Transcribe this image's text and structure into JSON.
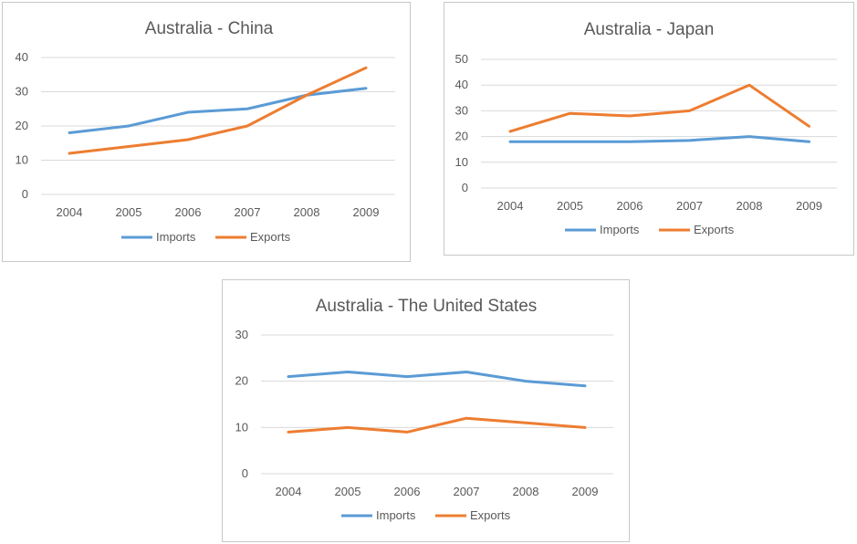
{
  "colors": {
    "imports": "#5b9bd5",
    "exports": "#ed7d31",
    "grid": "#d9d9d9",
    "text": "#595959"
  },
  "chart_data": [
    {
      "type": "line",
      "title": "Australia - China",
      "categories": [
        "2004",
        "2005",
        "2006",
        "2007",
        "2008",
        "2009"
      ],
      "series": [
        {
          "name": "Imports",
          "values": [
            18,
            20,
            24,
            25,
            29,
            31
          ]
        },
        {
          "name": "Exports",
          "values": [
            12,
            14,
            16,
            20,
            29,
            37
          ]
        }
      ],
      "yticks": [
        "0",
        "10",
        "20",
        "30",
        "40"
      ],
      "ylim": [
        0,
        40
      ],
      "grid": true,
      "legend": "bottom"
    },
    {
      "type": "line",
      "title": "Australia - Japan",
      "categories": [
        "2004",
        "2005",
        "2006",
        "2007",
        "2008",
        "2009"
      ],
      "series": [
        {
          "name": "Imports",
          "values": [
            18,
            18,
            18,
            18.5,
            20,
            18
          ]
        },
        {
          "name": "Exports",
          "values": [
            22,
            29,
            28,
            30,
            40,
            24
          ]
        }
      ],
      "yticks": [
        "0",
        "10",
        "20",
        "30",
        "40",
        "50"
      ],
      "ylim": [
        0,
        50
      ],
      "grid": true,
      "legend": "bottom"
    },
    {
      "type": "line",
      "title": "Australia - The United States",
      "categories": [
        "2004",
        "2005",
        "2006",
        "2007",
        "2008",
        "2009"
      ],
      "series": [
        {
          "name": "Imports",
          "values": [
            21,
            22,
            21,
            22,
            20,
            19
          ]
        },
        {
          "name": "Exports",
          "values": [
            9,
            10,
            9,
            12,
            11,
            10
          ]
        }
      ],
      "yticks": [
        "0",
        "10",
        "20",
        "30"
      ],
      "ylim": [
        0,
        30
      ],
      "grid": true,
      "legend": "bottom"
    }
  ]
}
